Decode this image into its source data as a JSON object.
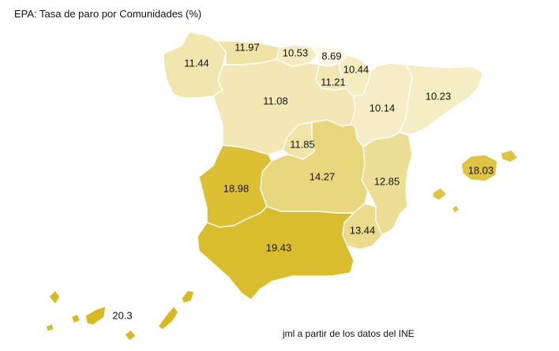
{
  "title": "EPA: Tasa de paro por Comunidades (%)",
  "source": "jml a partir de los datos del INE",
  "colors": {
    "scale_low": "#fbf7e4",
    "scale_high": "#d8b91f",
    "border": "#ffffff",
    "text": "#111111"
  },
  "regions": [
    {
      "name": "Galicia",
      "value": "11.44",
      "rate": 11.44
    },
    {
      "name": "Asturias",
      "value": "11.97",
      "rate": 11.97
    },
    {
      "name": "Cantabria",
      "value": "10.53",
      "rate": 10.53
    },
    {
      "name": "País Vasco",
      "value": "8.69",
      "rate": 8.69
    },
    {
      "name": "Navarra",
      "value": "10.44",
      "rate": 10.44
    },
    {
      "name": "La Rioja",
      "value": "11.21",
      "rate": 11.21
    },
    {
      "name": "Castilla y León",
      "value": "11.08",
      "rate": 11.08
    },
    {
      "name": "Aragón",
      "value": "10.14",
      "rate": 10.14
    },
    {
      "name": "Cataluña",
      "value": "10.23",
      "rate": 10.23
    },
    {
      "name": "Madrid",
      "value": "11.85",
      "rate": 11.85
    },
    {
      "name": "Castilla-La Mancha",
      "value": "14.27",
      "rate": 14.27
    },
    {
      "name": "Comunidad Valenciana",
      "value": "12.85",
      "rate": 12.85
    },
    {
      "name": "Extremadura",
      "value": "18.98",
      "rate": 18.98
    },
    {
      "name": "Región de Murcia",
      "value": "13.44",
      "rate": 13.44
    },
    {
      "name": "Andalucía",
      "value": "19.43",
      "rate": 19.43
    },
    {
      "name": "Illes Balears",
      "value": "18.03",
      "rate": 18.03
    },
    {
      "name": "Canarias",
      "value": "20.3",
      "rate": 20.3
    }
  ]
}
